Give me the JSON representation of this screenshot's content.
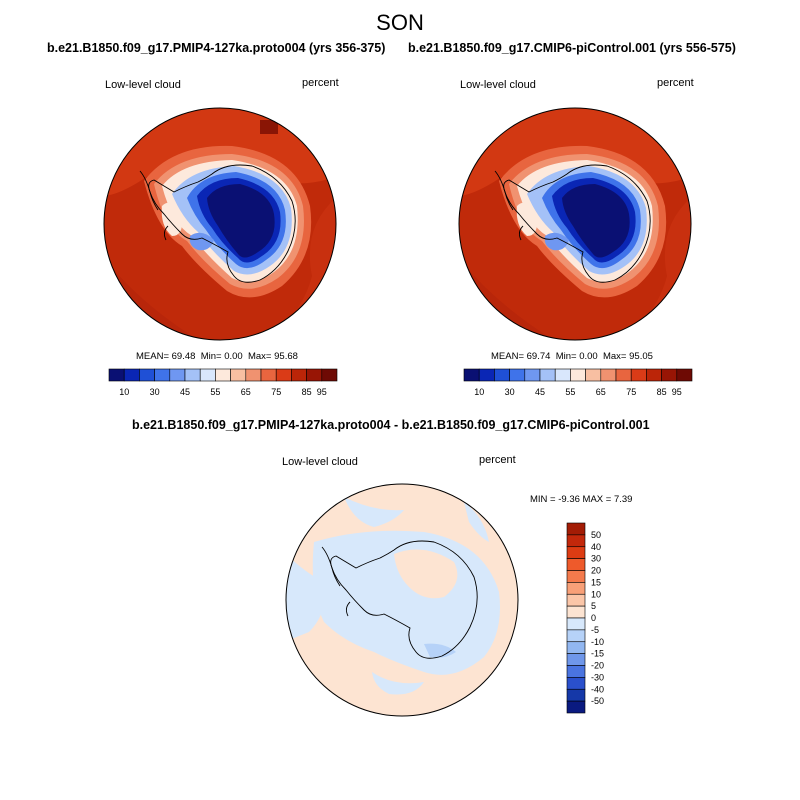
{
  "title": "SON",
  "panels": [
    {
      "id": "left",
      "case_title": "b.e21.B1850.f09_g17.PMIP4-127ka.proto004 (yrs 356-375)",
      "variable": "Low-level cloud",
      "units": "percent",
      "mean_label": "MEAN=",
      "mean": "69.48",
      "min_label": "Min=",
      "min": "0.00",
      "max_label": "Max=",
      "max": "95.68",
      "colorbar_ticks": [
        "10",
        "30",
        "45",
        "55",
        "65",
        "75",
        "85",
        "95"
      ]
    },
    {
      "id": "right",
      "case_title": "b.e21.B1850.f09_g17.CMIP6-piControl.001 (yrs 556-575)",
      "variable": "Low-level cloud",
      "units": "percent",
      "mean_label": "MEAN=",
      "mean": "69.74",
      "min_label": "Min=",
      "min": "0.00",
      "max_label": "Max=",
      "max": "95.05",
      "colorbar_ticks": [
        "10",
        "30",
        "45",
        "55",
        "65",
        "75",
        "85",
        "95"
      ]
    }
  ],
  "diff_panel": {
    "title": "b.e21.B1850.f09_g17.PMIP4-127ka.proto004 - b.e21.B1850.f09_g17.CMIP6-piControl.001",
    "variable": "Low-level cloud",
    "units": "percent",
    "minmax": "MIN =  -9.36 MAX =   7.39",
    "colorbar_ticks": [
      "50",
      "40",
      "30",
      "20",
      "15",
      "10",
      "5",
      "0",
      "-5",
      "-10",
      "-15",
      "-20",
      "-30",
      "-40",
      "-50"
    ]
  },
  "colors": {
    "abs_scale": [
      "#0a1073",
      "#0a26b5",
      "#1f50d6",
      "#3f73ea",
      "#6f97f1",
      "#a4c1f7",
      "#d9e7fc",
      "#fde9dc",
      "#f8bfa2",
      "#f09270",
      "#e8653f",
      "#da3b17",
      "#bb2508",
      "#981505",
      "#6e0a04"
    ],
    "diff_scale": [
      "#a31c05",
      "#c3280b",
      "#dd3c13",
      "#ee5a2b",
      "#f47a4c",
      "#f8a078",
      "#fbc6a8",
      "#fde4d2",
      "#d7e8fb",
      "#b6d2f8",
      "#92b7f1",
      "#6f97ea",
      "#4a74e0",
      "#2a50cc",
      "#1538a8",
      "#0a1a80"
    ],
    "land_ocean_warm": "#c8300f",
    "ocean_mid": "#dc3d16",
    "diff_positive": "#fde4d2",
    "diff_negative": "#d7e8fb"
  }
}
